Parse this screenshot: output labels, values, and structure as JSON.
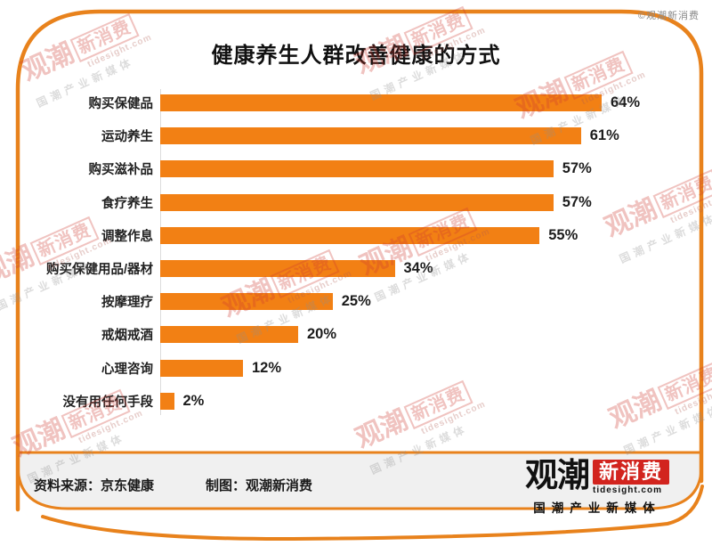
{
  "header": {
    "corner_note": "©观潮新消费"
  },
  "chart_data": {
    "type": "bar",
    "orientation": "horizontal",
    "title": "健康养生人群改善健康的方式",
    "categories": [
      "购买保健品",
      "运动养生",
      "购买滋补品",
      "食疗养生",
      "调整作息",
      "购买保健用品/器材",
      "按摩理疗",
      "戒烟戒酒",
      "心理咨询",
      "没有用任何手段"
    ],
    "values": [
      64,
      61,
      57,
      57,
      55,
      34,
      25,
      20,
      12,
      2
    ],
    "unit": "%",
    "xlabel": "",
    "ylabel": "",
    "xlim": [
      0,
      70
    ],
    "grid": false,
    "legend": "none",
    "bar_color": "#F28014",
    "value_labels": [
      "64%",
      "61%",
      "57%",
      "57%",
      "55%",
      "34%",
      "25%",
      "20%",
      "12%",
      "2%"
    ]
  },
  "footer": {
    "source": "资料来源：京东健康",
    "credit": "制图：观潮新消费"
  },
  "logo": {
    "name_left": "观潮",
    "name_right": "新消费",
    "domain": "tidesight.com",
    "tagline": "国潮产业新媒体"
  },
  "watermark": {
    "name_left": "观潮",
    "name_right": "新消费",
    "domain": "tidesight.com",
    "tagline": "国潮产业新媒体"
  },
  "colors": {
    "accent_orange": "#F28014",
    "frame_orange": "#E8821C",
    "logo_red": "#D2241E",
    "footer_band": "#F0F0F0",
    "watermark_red": "#cf3b31",
    "text_black": "#111111",
    "note_gray": "#8a8a8a"
  }
}
